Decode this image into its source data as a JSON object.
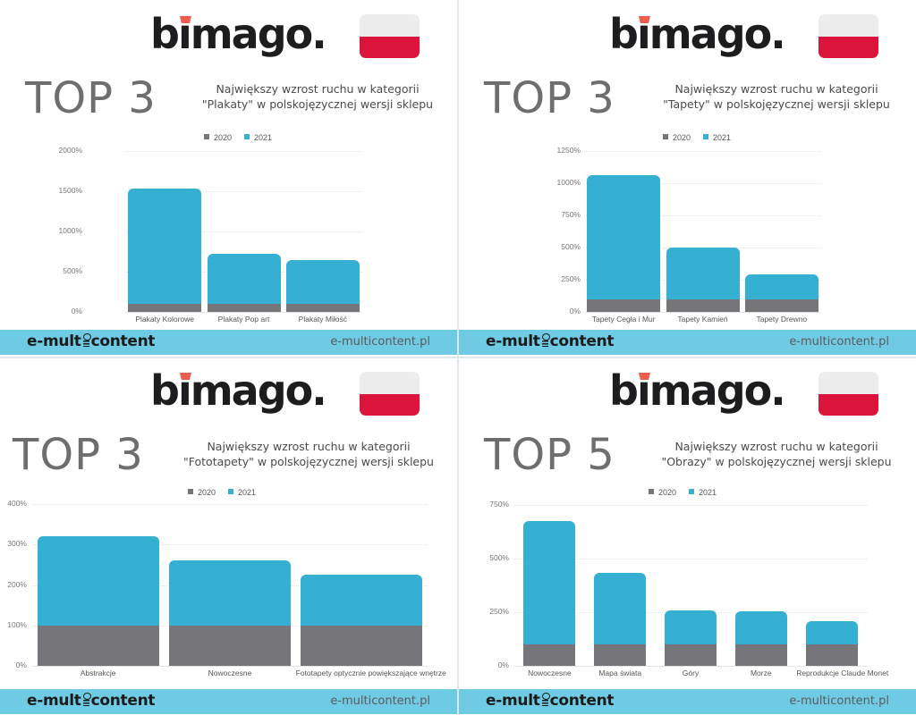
{
  "colors": {
    "series_2020": "#767579",
    "series_2021": "#36b0d2",
    "footer_bg": "#6fcbe4",
    "flag_white": "#ececec",
    "flag_red": "#dc143c",
    "logo_accent": "#ef5d4f"
  },
  "panels": [
    {
      "logo": {
        "text_pre": "b",
        "text_i": "ı",
        "text_post": "mago."
      },
      "flag": "poland-flag-icon",
      "top_label": "TOP 3",
      "subtitle_line1": "Największy wzrost ruchu w kategorii",
      "subtitle_line2": "\"Plakaty\" w polskojęzycznej wersji sklepu",
      "legend": [
        "2020",
        "2021"
      ],
      "footer": {
        "brand_pre": "e-mult",
        "brand_post": "content",
        "url": "e-multicontent.pl"
      }
    },
    {
      "logo": {
        "text_pre": "b",
        "text_i": "ı",
        "text_post": "mago."
      },
      "flag": "poland-flag-icon",
      "top_label": "TOP 3",
      "subtitle_line1": "Największy wzrost ruchu w kategorii",
      "subtitle_line2": "\"Tapety\" w polskojęzycznej wersji sklepu",
      "legend": [
        "2020",
        "2021"
      ],
      "footer": {
        "brand_pre": "e-mult",
        "brand_post": "content",
        "url": "e-multicontent.pl"
      }
    },
    {
      "logo": {
        "text_pre": "b",
        "text_i": "ı",
        "text_post": "mago."
      },
      "flag": "poland-flag-icon",
      "top_label": "TOP 3",
      "subtitle_line1": "Największy wzrost ruchu w kategorii",
      "subtitle_line2": "\"Fototapety\" w polskojęzycznej wersji sklepu",
      "legend": [
        "2020",
        "2021"
      ],
      "footer": {
        "brand_pre": "e-mult",
        "brand_post": "content",
        "url": "e-multicontent.pl"
      }
    },
    {
      "logo": {
        "text_pre": "b",
        "text_i": "ı",
        "text_post": "mago."
      },
      "flag": "poland-flag-icon",
      "top_label": "TOP 5",
      "subtitle_line1": "Największy wzrost ruchu w kategorii",
      "subtitle_line2": "\"Obrazy\" w polskojęzycznej wersji sklepu",
      "legend": [
        "2020",
        "2021"
      ],
      "footer": {
        "brand_pre": "e-mult",
        "brand_post": "content",
        "url": "e-multicontent.pl"
      }
    }
  ],
  "chart_data": [
    {
      "type": "bar",
      "title": "TOP 3 – Największy wzrost ruchu w kategorii \"Plakaty\" w polskojęzycznej wersji sklepu",
      "categories": [
        "Plakaty Kolorowe",
        "Plakaty Pop art",
        "Plakaty Miłość"
      ],
      "series": [
        {
          "name": "2020",
          "values": [
            100,
            100,
            100
          ]
        },
        {
          "name": "2021",
          "values": [
            1530,
            720,
            650
          ]
        }
      ],
      "yticks": [
        "0%",
        "500%",
        "1000%",
        "1500%",
        "2000%"
      ],
      "ylim": [
        0,
        2000
      ],
      "xlabel": "",
      "ylabel": "",
      "legend_position": "top",
      "grid": true
    },
    {
      "type": "bar",
      "title": "TOP 3 – Największy wzrost ruchu w kategorii \"Tapety\" w polskojęzycznej wersji sklepu",
      "categories": [
        "Tapety Cegła i Mur",
        "Tapety Kamień",
        "Tapety Drewno"
      ],
      "series": [
        {
          "name": "2020",
          "values": [
            100,
            100,
            100
          ]
        },
        {
          "name": "2021",
          "values": [
            1060,
            500,
            290
          ]
        }
      ],
      "yticks": [
        "0%",
        "250%",
        "500%",
        "750%",
        "1000%",
        "1250%"
      ],
      "ylim": [
        0,
        1250
      ],
      "xlabel": "",
      "ylabel": "",
      "legend_position": "top",
      "grid": true
    },
    {
      "type": "bar",
      "title": "TOP 3 – Największy wzrost ruchu w kategorii \"Fototapety\" w polskojęzycznej wersji sklepu",
      "categories": [
        "Abstrakcje",
        "Nowoczesne",
        "Fototapety optycznie powiększające wnętrze"
      ],
      "series": [
        {
          "name": "2020",
          "values": [
            100,
            100,
            100
          ]
        },
        {
          "name": "2021",
          "values": [
            320,
            260,
            225
          ]
        }
      ],
      "yticks": [
        "0%",
        "100%",
        "200%",
        "300%",
        "400%"
      ],
      "ylim": [
        0,
        400
      ],
      "xlabel": "",
      "ylabel": "",
      "legend_position": "top",
      "grid": true
    },
    {
      "type": "bar",
      "title": "TOP 5 – Największy wzrost ruchu w kategorii \"Obrazy\" w polskojęzycznej wersji sklepu",
      "categories": [
        "Nowoczesne",
        "Mapa świata",
        "Góry",
        "Morze",
        "Reprodukcje Claude Monet"
      ],
      "series": [
        {
          "name": "2020",
          "values": [
            100,
            100,
            100,
            100,
            100
          ]
        },
        {
          "name": "2021",
          "values": [
            675,
            435,
            260,
            255,
            210
          ]
        }
      ],
      "yticks": [
        "0%",
        "250%",
        "500%",
        "750%"
      ],
      "ylim": [
        0,
        750
      ],
      "xlabel": "",
      "ylabel": "",
      "legend_position": "top",
      "grid": true
    }
  ]
}
